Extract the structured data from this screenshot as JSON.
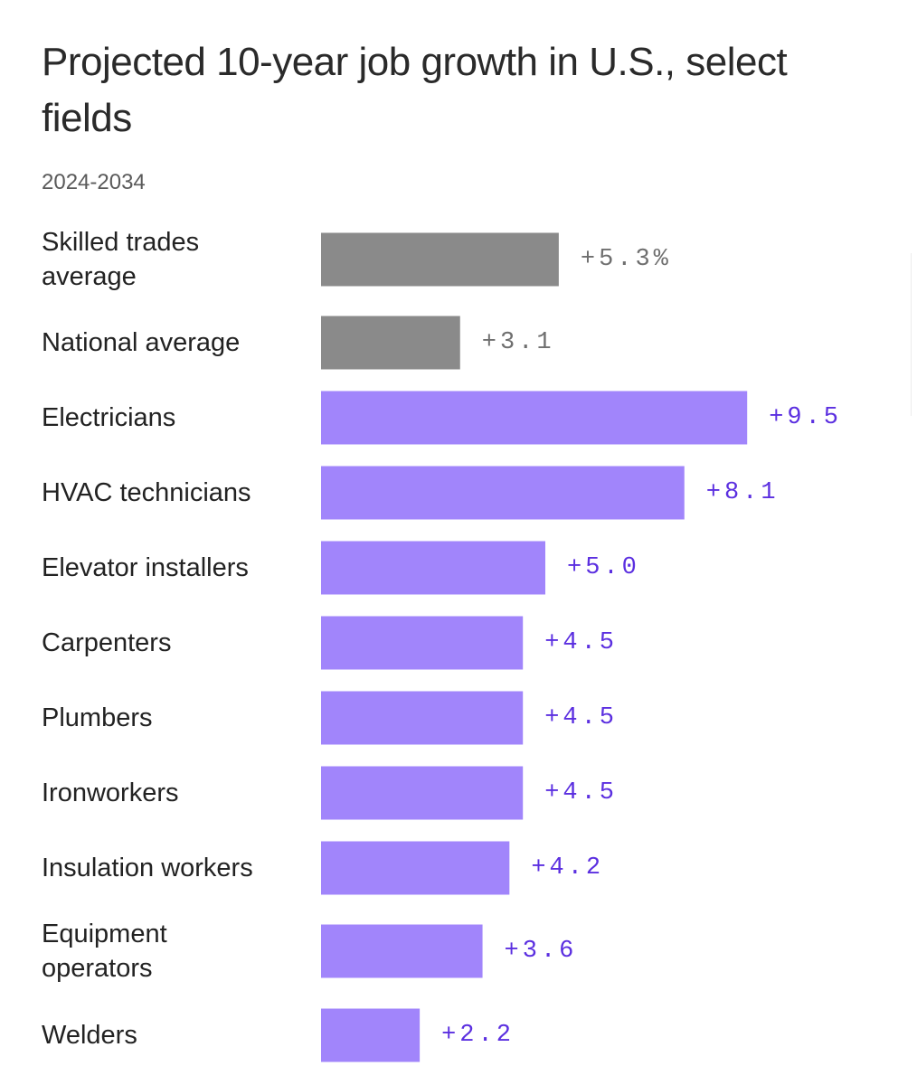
{
  "chart_data": {
    "type": "bar",
    "orientation": "horizontal",
    "title": "Projected 10-year job growth in U.S., select fields",
    "subtitle": "2024-2034",
    "unit": "%",
    "xlim": [
      0,
      10.5
    ],
    "colors": {
      "average": "#8a8a8a",
      "average_text": "#6f6f6f",
      "field": "#a185fb",
      "field_text": "#5b2fe0"
    },
    "rows": [
      {
        "label_lines": [
          "Skilled trades",
          "average"
        ],
        "value": 5.3,
        "value_label": "+5.3%",
        "group": "average"
      },
      {
        "label_lines": [
          "National average"
        ],
        "value": 3.1,
        "value_label": "+3.1",
        "group": "average"
      },
      {
        "label_lines": [
          "Electricians"
        ],
        "value": 9.5,
        "value_label": "+9.5",
        "group": "field"
      },
      {
        "label_lines": [
          "HVAC technicians"
        ],
        "value": 8.1,
        "value_label": "+8.1",
        "group": "field"
      },
      {
        "label_lines": [
          "Elevator installers"
        ],
        "value": 5.0,
        "value_label": "+5.0",
        "group": "field"
      },
      {
        "label_lines": [
          "Carpenters"
        ],
        "value": 4.5,
        "value_label": "+4.5",
        "group": "field"
      },
      {
        "label_lines": [
          "Plumbers"
        ],
        "value": 4.5,
        "value_label": "+4.5",
        "group": "field"
      },
      {
        "label_lines": [
          "Ironworkers"
        ],
        "value": 4.5,
        "value_label": "+4.5",
        "group": "field"
      },
      {
        "label_lines": [
          "Insulation workers"
        ],
        "value": 4.2,
        "value_label": "+4.2",
        "group": "field"
      },
      {
        "label_lines": [
          "Equipment",
          "operators"
        ],
        "value": 3.6,
        "value_label": "+3.6",
        "group": "field"
      },
      {
        "label_lines": [
          "Welders"
        ],
        "value": 2.2,
        "value_label": "+2.2",
        "group": "field"
      }
    ]
  }
}
